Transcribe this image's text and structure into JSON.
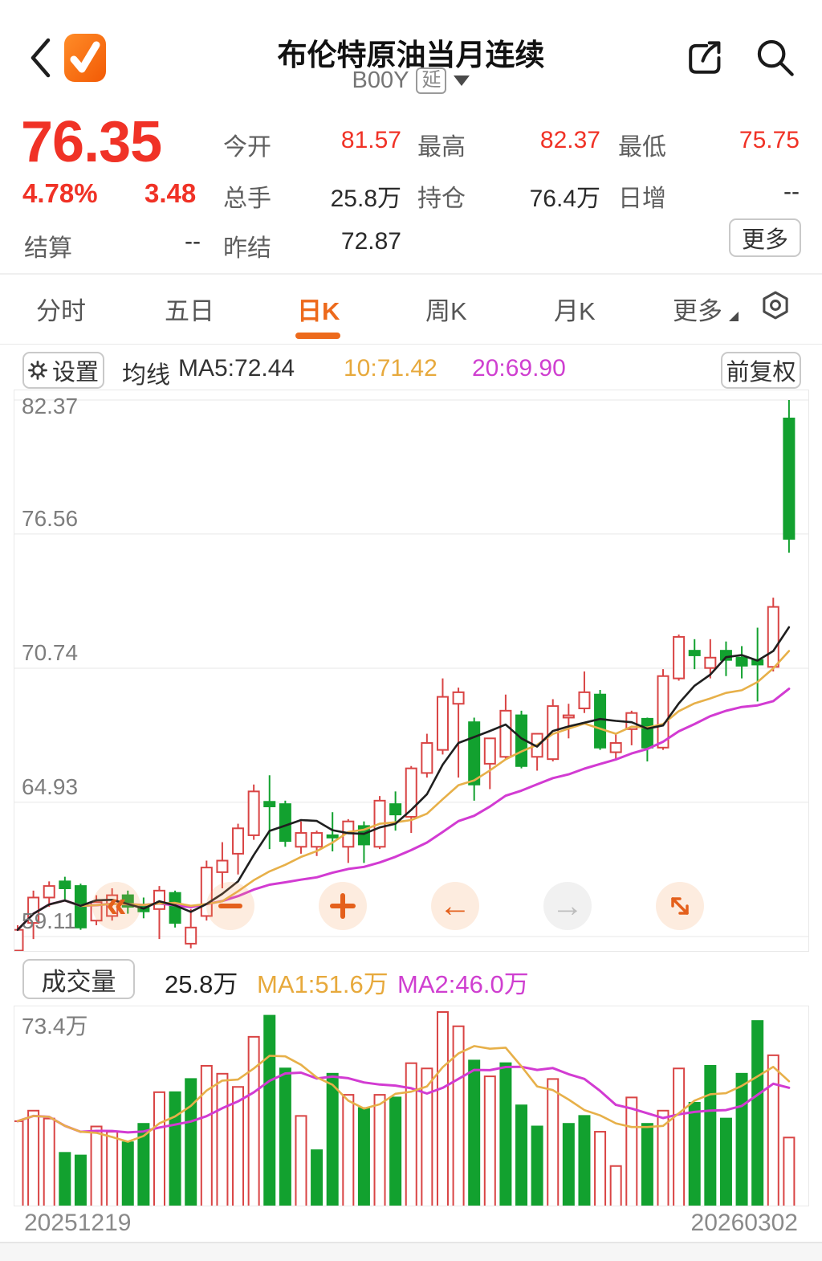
{
  "header": {
    "title": "布伦特原油当月连续",
    "symbol": "B00Y",
    "symbol_badge": "延",
    "back_icon": "chevron-left",
    "app_icon": "orange-checkmark-logo",
    "share_icon": "share-box-arrow",
    "search_icon": "magnifier"
  },
  "quote": {
    "price": "76.35",
    "change_pct": "4.78%",
    "change_abs": "3.48",
    "fields": [
      {
        "label": "今开",
        "value": "81.57",
        "red": true
      },
      {
        "label": "最高",
        "value": "82.37",
        "red": true
      },
      {
        "label": "最低",
        "value": "75.75",
        "red": true
      },
      {
        "label": "总手",
        "value": "25.8万"
      },
      {
        "label": "持仓",
        "value": "76.4万"
      },
      {
        "label": "日增",
        "value": "--"
      },
      {
        "label": "结算",
        "value": "--"
      },
      {
        "label": "昨结",
        "value": "72.87"
      }
    ],
    "more_label": "更多"
  },
  "tabs": [
    {
      "label": "分时"
    },
    {
      "label": "五日"
    },
    {
      "label": "日K",
      "active": true
    },
    {
      "label": "周K"
    },
    {
      "label": "月K"
    },
    {
      "label": "更多"
    }
  ],
  "ma_toolbar": {
    "settings_label": "设置",
    "ma_title": "均线",
    "ma5_label": "MA5:72.44",
    "ma10_label": "10:71.42",
    "ma20_label": "20:69.90",
    "adjust_label": "前复权"
  },
  "price_axis": [
    "82.37",
    "76.56",
    "70.74",
    "64.93",
    "59.11"
  ],
  "volume_header": {
    "button_label": "成交量",
    "current": "25.8万",
    "ma1_label": "MA1:51.6万",
    "ma2_label": "MA2:46.0万",
    "axis_max": "73.4万"
  },
  "dates": {
    "start": "20251219",
    "end": "20260302"
  },
  "colors": {
    "up_red": "#d94444",
    "down_green": "#12a12f",
    "accent_orange": "#ed6a1c",
    "text_red": "#f03226",
    "ma5": "#1f1f1f",
    "ma10": "#e7b049",
    "ma20": "#d23bd2",
    "grid": "#ececec"
  },
  "chart_data": {
    "type": "candlestick+volume",
    "title": "布伦特原油当月连续 日K",
    "y_axis_ticks": [
      82.37,
      76.56,
      70.74,
      64.93,
      59.11
    ],
    "y_range": [
      59.11,
      82.37
    ],
    "volume_axis_max_wan": 73.4,
    "x_axis_labels": [
      "20251219",
      "20260302"
    ],
    "legend": [
      "MA5",
      "MA10",
      "MA20",
      "VOL MA1",
      "VOL MA2"
    ],
    "ma_last_values": {
      "ma5": 72.44,
      "ma10": 71.42,
      "ma20": 69.9,
      "vol_ma1_wan": 51.6,
      "vol_ma2_wan": 46.0
    },
    "candle_format": [
      "open",
      "high",
      "low",
      "close",
      "volume_wan",
      "volume_bar_red_hollow"
    ],
    "candles": [
      [
        58.5,
        59.6,
        58.4,
        59.4,
        32,
        1
      ],
      [
        59.7,
        61.1,
        59.0,
        60.8,
        36,
        1
      ],
      [
        60.8,
        61.5,
        60.4,
        61.3,
        33,
        1
      ],
      [
        61.5,
        61.7,
        60.7,
        61.2,
        20,
        0
      ],
      [
        61.3,
        61.4,
        59.4,
        59.5,
        19,
        0
      ],
      [
        59.8,
        60.9,
        59.6,
        60.6,
        30,
        1
      ],
      [
        60.0,
        61.2,
        59.8,
        60.9,
        28,
        1
      ],
      [
        60.9,
        61.1,
        60.1,
        60.4,
        24,
        0
      ],
      [
        60.4,
        60.8,
        59.9,
        60.2,
        31,
        0
      ],
      [
        60.3,
        61.3,
        59.0,
        61.1,
        43,
        1
      ],
      [
        61.0,
        61.1,
        59.5,
        59.7,
        43,
        0
      ],
      [
        58.8,
        60.3,
        58.6,
        59.5,
        48,
        0
      ],
      [
        60.0,
        62.4,
        59.8,
        62.1,
        53,
        1
      ],
      [
        61.9,
        63.2,
        61.2,
        62.4,
        50,
        1
      ],
      [
        62.7,
        64.0,
        61.8,
        63.8,
        45,
        1
      ],
      [
        63.5,
        65.7,
        63.3,
        65.4,
        64,
        1
      ],
      [
        64.95,
        66.1,
        62.9,
        64.75,
        72,
        0
      ],
      [
        64.85,
        65.0,
        63.0,
        63.25,
        52,
        0
      ],
      [
        63.0,
        64.1,
        62.7,
        63.6,
        34,
        1
      ],
      [
        63.0,
        63.7,
        62.6,
        63.6,
        21,
        0
      ],
      [
        63.5,
        64.5,
        62.8,
        63.4,
        50,
        0
      ],
      [
        63.0,
        64.2,
        62.3,
        64.1,
        42,
        1
      ],
      [
        63.9,
        64.1,
        62.3,
        63.1,
        37,
        0
      ],
      [
        63.0,
        65.2,
        62.9,
        65.0,
        42,
        1
      ],
      [
        64.85,
        65.4,
        63.7,
        64.4,
        41,
        0
      ],
      [
        64.3,
        66.5,
        63.6,
        66.4,
        54,
        1
      ],
      [
        66.2,
        67.9,
        66.0,
        67.5,
        52,
        1
      ],
      [
        67.2,
        70.3,
        67.0,
        69.5,
        73.4,
        1
      ],
      [
        69.2,
        69.9,
        66.0,
        69.7,
        68,
        1
      ],
      [
        68.4,
        68.6,
        65.0,
        65.7,
        55,
        0
      ],
      [
        66.6,
        67.7,
        65.5,
        67.7,
        49,
        1
      ],
      [
        66.9,
        69.6,
        66.8,
        68.9,
        54,
        0
      ],
      [
        68.7,
        68.9,
        66.4,
        66.5,
        38,
        0
      ],
      [
        66.9,
        67.9,
        66.3,
        67.9,
        30,
        0
      ],
      [
        66.8,
        69.4,
        66.7,
        69.1,
        48,
        1
      ],
      [
        68.6,
        69.2,
        67.7,
        68.7,
        31,
        0
      ],
      [
        69.0,
        70.6,
        68.8,
        69.7,
        34,
        0
      ],
      [
        69.6,
        69.8,
        67.2,
        67.3,
        28,
        1
      ],
      [
        67.1,
        67.9,
        66.8,
        67.5,
        15,
        1
      ],
      [
        68.1,
        68.9,
        67.4,
        68.8,
        41,
        1
      ],
      [
        68.55,
        68.6,
        66.7,
        67.3,
        31,
        0
      ],
      [
        67.3,
        70.7,
        67.2,
        70.4,
        36,
        1
      ],
      [
        70.3,
        72.2,
        70.2,
        72.1,
        52,
        1
      ],
      [
        71.5,
        72.0,
        70.7,
        71.3,
        39,
        0
      ],
      [
        70.75,
        72.0,
        70.3,
        71.2,
        53,
        0
      ],
      [
        71.5,
        71.9,
        70.4,
        71.1,
        33,
        0
      ],
      [
        71.2,
        71.7,
        70.3,
        70.85,
        50,
        0
      ],
      [
        71.1,
        72.5,
        69.3,
        70.9,
        70,
        0
      ],
      [
        70.8,
        73.8,
        70.6,
        73.4,
        57,
        1
      ],
      [
        81.57,
        82.37,
        75.75,
        76.35,
        25.8,
        1
      ]
    ]
  }
}
